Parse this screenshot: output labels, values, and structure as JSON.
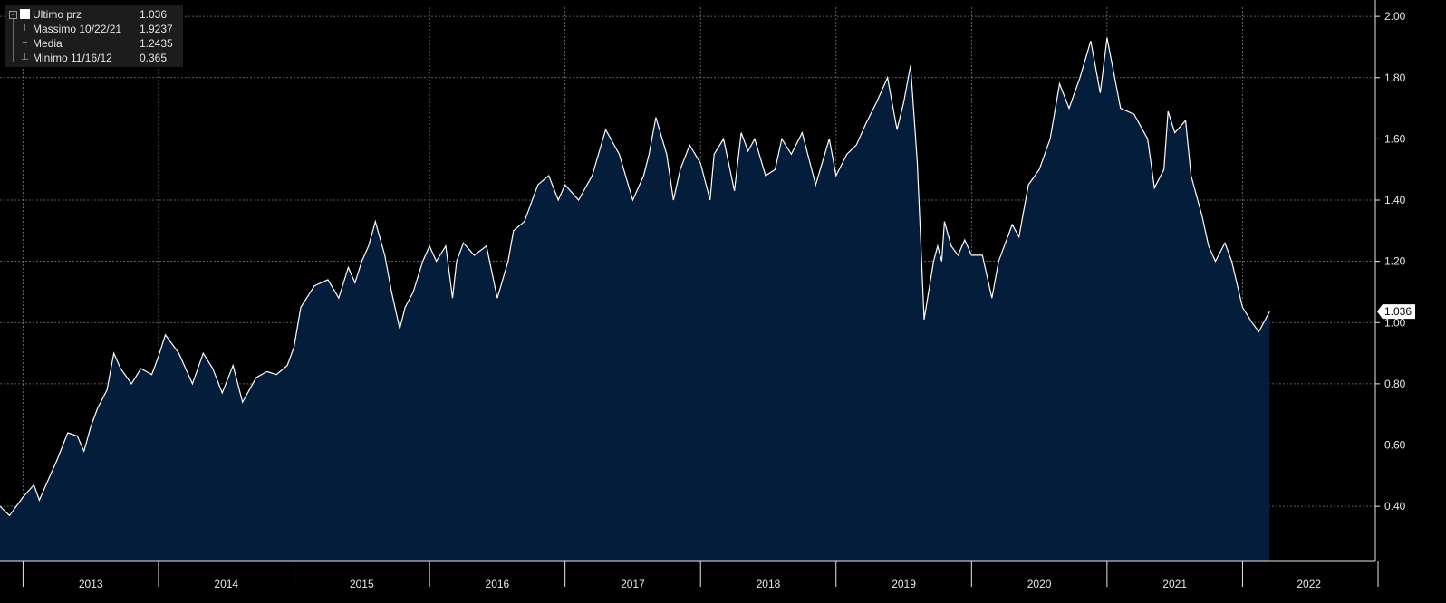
{
  "legend": {
    "items": [
      {
        "label": "Ultimo prz",
        "value": "1.036"
      },
      {
        "label": "Massimo 10/22/21",
        "value": "1.9237"
      },
      {
        "label": "Media",
        "value": "1.2435"
      },
      {
        "label": "Minimo 11/16/12",
        "value": "0.365"
      }
    ]
  },
  "colors": {
    "background": "#000000",
    "area_fill": "#031d3b",
    "line": "#ffffff",
    "grid": "#7a7a7a",
    "text": "#e8e8e8",
    "last_label_bg": "#ffffff"
  },
  "chart_data": {
    "type": "area",
    "x_ticks": [
      "2013",
      "2014",
      "2015",
      "2016",
      "2017",
      "2018",
      "2019",
      "2020",
      "2021",
      "2022"
    ],
    "y_ticks": [
      "0.40",
      "0.60",
      "0.80",
      "1.00",
      "1.20",
      "1.40",
      "1.60",
      "1.80",
      "2.00"
    ],
    "ylim": [
      0.22,
      2.03
    ],
    "xlim": [
      2012.83,
      2022.98
    ],
    "grid": true,
    "axis_position": "right",
    "last_value_label": "1.036",
    "series": [
      {
        "x": [
          2012.83,
          2012.9,
          2013.0,
          2013.08,
          2013.12,
          2013.2,
          2013.25,
          2013.33,
          2013.4,
          2013.45,
          2013.5,
          2013.55,
          2013.62,
          2013.67,
          2013.72,
          2013.8,
          2013.87,
          2013.95,
          2014.0,
          2014.05,
          2014.15,
          2014.25,
          2014.33,
          2014.4,
          2014.47,
          2014.55,
          2014.62,
          2014.67,
          2014.72,
          2014.8,
          2014.87,
          2014.95,
          2015.0,
          2015.05,
          2015.15,
          2015.25,
          2015.33,
          2015.4,
          2015.45,
          2015.5,
          2015.55,
          2015.6,
          2015.67,
          2015.72,
          2015.78,
          2015.82,
          2015.88,
          2015.95,
          2016.0,
          2016.05,
          2016.12,
          2016.17,
          2016.2,
          2016.25,
          2016.33,
          2016.42,
          2016.5,
          2016.58,
          2016.62,
          2016.7,
          2016.8,
          2016.88,
          2016.95,
          2017.0,
          2017.1,
          2017.2,
          2017.3,
          2017.4,
          2017.5,
          2017.58,
          2017.62,
          2017.67,
          2017.75,
          2017.8,
          2017.85,
          2017.92,
          2018.0,
          2018.07,
          2018.1,
          2018.17,
          2018.25,
          2018.3,
          2018.35,
          2018.4,
          2018.48,
          2018.55,
          2018.6,
          2018.67,
          2018.75,
          2018.85,
          2018.95,
          2019.0,
          2019.08,
          2019.15,
          2019.22,
          2019.3,
          2019.38,
          2019.45,
          2019.5,
          2019.55,
          2019.6,
          2019.65,
          2019.72,
          2019.75,
          2019.78,
          2019.8,
          2019.85,
          2019.9,
          2019.95,
          2020.0,
          2020.08,
          2020.15,
          2020.2,
          2020.3,
          2020.35,
          2020.42,
          2020.5,
          2020.58,
          2020.65,
          2020.72,
          2020.8,
          2020.88,
          2020.95,
          2021.0,
          2021.1,
          2021.2,
          2021.3,
          2021.35,
          2021.42,
          2021.45,
          2021.5,
          2021.58,
          2021.62,
          2021.7,
          2021.75,
          2021.8,
          2021.87,
          2021.92,
          2022.0,
          2022.07,
          2022.12,
          2022.2,
          2022.3,
          2022.37,
          2022.45,
          2022.5,
          2022.55,
          2022.58
        ],
        "y": [
          0.4,
          0.37,
          0.43,
          0.47,
          0.42,
          0.5,
          0.55,
          0.64,
          0.63,
          0.58,
          0.66,
          0.72,
          0.78,
          0.9,
          0.85,
          0.8,
          0.85,
          0.83,
          0.89,
          0.96,
          0.9,
          0.8,
          0.9,
          0.85,
          0.77,
          0.86,
          0.74,
          0.78,
          0.82,
          0.84,
          0.83,
          0.86,
          0.92,
          1.05,
          1.12,
          1.14,
          1.08,
          1.18,
          1.13,
          1.2,
          1.25,
          1.33,
          1.22,
          1.1,
          0.98,
          1.05,
          1.1,
          1.2,
          1.25,
          1.2,
          1.25,
          1.08,
          1.2,
          1.26,
          1.22,
          1.25,
          1.08,
          1.2,
          1.3,
          1.33,
          1.45,
          1.48,
          1.4,
          1.45,
          1.4,
          1.48,
          1.63,
          1.55,
          1.4,
          1.48,
          1.55,
          1.67,
          1.55,
          1.4,
          1.5,
          1.58,
          1.52,
          1.4,
          1.55,
          1.6,
          1.43,
          1.62,
          1.56,
          1.6,
          1.48,
          1.5,
          1.6,
          1.55,
          1.62,
          1.45,
          1.6,
          1.48,
          1.55,
          1.58,
          1.65,
          1.72,
          1.8,
          1.63,
          1.72,
          1.84,
          1.52,
          1.01,
          1.2,
          1.25,
          1.2,
          1.33,
          1.25,
          1.22,
          1.27,
          1.22,
          1.22,
          1.08,
          1.2,
          1.32,
          1.28,
          1.45,
          1.5,
          1.6,
          1.78,
          1.7,
          1.8,
          1.92,
          1.75,
          1.93,
          1.7,
          1.68,
          1.6,
          1.44,
          1.5,
          1.69,
          1.62,
          1.66,
          1.48,
          1.35,
          1.25,
          1.2,
          1.26,
          1.2,
          1.05,
          1.0,
          0.97,
          1.036,
          1.036,
          1.036,
          1.036,
          1.036,
          1.036,
          1.036
        ]
      }
    ]
  }
}
